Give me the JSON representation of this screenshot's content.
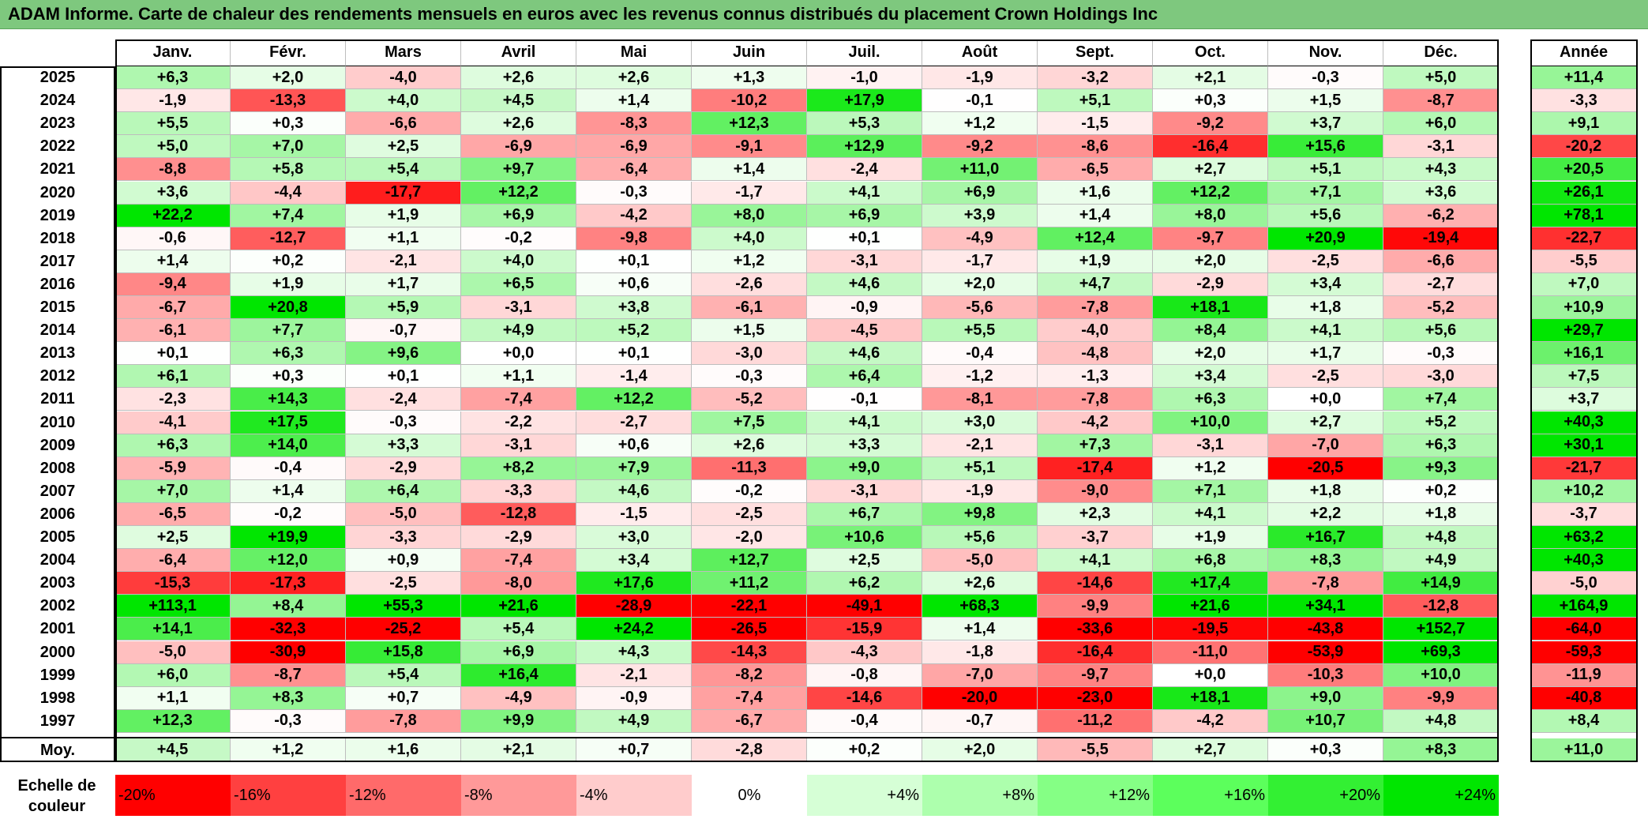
{
  "title": "ADAM Informe. Carte de chaleur des rendements mensuels en euros avec les revenus connus distribués du placement Crown Holdings Inc",
  "colors": {
    "title_bar": "#7ec87e",
    "negative_max": "#ff0000",
    "neutral": "#ffffff",
    "positive_max": "#00e600"
  },
  "chart_data": {
    "type": "heatmap",
    "months": [
      "Janv.",
      "Févr.",
      "Mars",
      "Avril",
      "Mai",
      "Juin",
      "Juil.",
      "Août",
      "Sept.",
      "Oct.",
      "Nov.",
      "Déc."
    ],
    "year_header": "Année",
    "rows": [
      {
        "year": "2025",
        "values": [
          "+6,3",
          "+2,0",
          "-4,0",
          "+2,6",
          "+2,6",
          "+1,3",
          "-1,0",
          "-1,9",
          "-3,2",
          "+2,1",
          "-0,3",
          "+5,0"
        ],
        "annual": "+11,4"
      },
      {
        "year": "2024",
        "values": [
          "-1,9",
          "-13,3",
          "+4,0",
          "+4,5",
          "+1,4",
          "-10,2",
          "+17,9",
          "-0,1",
          "+5,1",
          "+0,3",
          "+1,5",
          "-8,7"
        ],
        "annual": "-3,3"
      },
      {
        "year": "2023",
        "values": [
          "+5,5",
          "+0,3",
          "-6,6",
          "+2,6",
          "-8,3",
          "+12,3",
          "+5,3",
          "+1,2",
          "-1,5",
          "-9,2",
          "+3,7",
          "+6,0"
        ],
        "annual": "+9,1"
      },
      {
        "year": "2022",
        "values": [
          "+5,0",
          "+7,0",
          "+2,5",
          "-6,9",
          "-6,9",
          "-9,1",
          "+12,9",
          "-9,2",
          "-8,6",
          "-16,4",
          "+15,6",
          "-3,1"
        ],
        "annual": "-20,2"
      },
      {
        "year": "2021",
        "values": [
          "-8,8",
          "+5,8",
          "+5,4",
          "+9,7",
          "-6,4",
          "+1,4",
          "-2,4",
          "+11,0",
          "-6,5",
          "+2,7",
          "+5,1",
          "+4,3"
        ],
        "annual": "+20,5"
      },
      {
        "year": "2020",
        "values": [
          "+3,6",
          "-4,4",
          "-17,7",
          "+12,2",
          "-0,3",
          "-1,7",
          "+4,1",
          "+6,9",
          "+1,6",
          "+12,2",
          "+7,1",
          "+3,6"
        ],
        "annual": "+26,1"
      },
      {
        "year": "2019",
        "values": [
          "+22,2",
          "+7,4",
          "+1,9",
          "+6,9",
          "-4,2",
          "+8,0",
          "+6,9",
          "+3,9",
          "+1,4",
          "+8,0",
          "+5,6",
          "-6,2"
        ],
        "annual": "+78,1"
      },
      {
        "year": "2018",
        "values": [
          "-0,6",
          "-12,7",
          "+1,1",
          "-0,2",
          "-9,8",
          "+4,0",
          "+0,1",
          "-4,9",
          "+12,4",
          "-9,7",
          "+20,9",
          "-19,4"
        ],
        "annual": "-22,7"
      },
      {
        "year": "2017",
        "values": [
          "+1,4",
          "+0,2",
          "-2,1",
          "+4,0",
          "+0,1",
          "+1,2",
          "-3,1",
          "-1,7",
          "+1,9",
          "+2,0",
          "-2,5",
          "-6,6"
        ],
        "annual": "-5,5"
      },
      {
        "year": "2016",
        "values": [
          "-9,4",
          "+1,9",
          "+1,7",
          "+6,5",
          "+0,6",
          "-2,6",
          "+4,6",
          "+2,0",
          "+4,7",
          "-2,9",
          "+3,4",
          "-2,7"
        ],
        "annual": "+7,0"
      },
      {
        "year": "2015",
        "values": [
          "-6,7",
          "+20,8",
          "+5,9",
          "-3,1",
          "+3,8",
          "-6,1",
          "-0,9",
          "-5,6",
          "-7,8",
          "+18,1",
          "+1,8",
          "-5,2"
        ],
        "annual": "+10,9"
      },
      {
        "year": "2014",
        "values": [
          "-6,1",
          "+7,7",
          "-0,7",
          "+4,9",
          "+5,2",
          "+1,5",
          "-4,5",
          "+5,5",
          "-4,0",
          "+8,4",
          "+4,1",
          "+5,6"
        ],
        "annual": "+29,7"
      },
      {
        "year": "2013",
        "values": [
          "+0,1",
          "+6,3",
          "+9,6",
          "+0,0",
          "+0,1",
          "-3,0",
          "+4,6",
          "-0,4",
          "-4,8",
          "+2,0",
          "+1,7",
          "-0,3"
        ],
        "annual": "+16,1"
      },
      {
        "year": "2012",
        "values": [
          "+6,1",
          "+0,3",
          "+0,1",
          "+1,1",
          "-1,4",
          "-0,3",
          "+6,4",
          "-1,2",
          "-1,3",
          "+3,4",
          "-2,5",
          "-3,0"
        ],
        "annual": "+7,5"
      },
      {
        "year": "2011",
        "values": [
          "-2,3",
          "+14,3",
          "-2,4",
          "-7,4",
          "+12,2",
          "-5,2",
          "-0,1",
          "-8,1",
          "-7,8",
          "+6,3",
          "+0,0",
          "+7,4"
        ],
        "annual": "+3,7"
      },
      {
        "year": "2010",
        "values": [
          "-4,1",
          "+17,5",
          "-0,3",
          "-2,2",
          "-2,7",
          "+7,5",
          "+4,1",
          "+3,0",
          "-4,2",
          "+10,0",
          "+2,7",
          "+5,2"
        ],
        "annual": "+40,3"
      },
      {
        "year": "2009",
        "values": [
          "+6,3",
          "+14,0",
          "+3,3",
          "-3,1",
          "+0,6",
          "+2,6",
          "+3,3",
          "-2,1",
          "+7,3",
          "-3,1",
          "-7,0",
          "+6,3"
        ],
        "annual": "+30,1"
      },
      {
        "year": "2008",
        "values": [
          "-5,9",
          "-0,4",
          "-2,9",
          "+8,2",
          "+7,9",
          "-11,3",
          "+9,0",
          "+5,1",
          "-17,4",
          "+1,2",
          "-20,5",
          "+9,3"
        ],
        "annual": "-21,7"
      },
      {
        "year": "2007",
        "values": [
          "+7,0",
          "+1,4",
          "+6,4",
          "-3,3",
          "+4,6",
          "-0,2",
          "-3,1",
          "-1,9",
          "-9,0",
          "+7,1",
          "+1,8",
          "+0,2"
        ],
        "annual": "+10,2"
      },
      {
        "year": "2006",
        "values": [
          "-6,5",
          "-0,2",
          "-5,0",
          "-12,8",
          "-1,5",
          "-2,5",
          "+6,7",
          "+9,8",
          "+2,3",
          "+4,1",
          "+2,2",
          "+1,8"
        ],
        "annual": "-3,7"
      },
      {
        "year": "2005",
        "values": [
          "+2,5",
          "+19,9",
          "-3,3",
          "-2,9",
          "+3,0",
          "-2,0",
          "+10,6",
          "+5,6",
          "-3,7",
          "+1,9",
          "+16,7",
          "+4,8"
        ],
        "annual": "+63,2"
      },
      {
        "year": "2004",
        "values": [
          "-6,4",
          "+12,0",
          "+0,9",
          "-7,4",
          "+3,4",
          "+12,7",
          "+2,5",
          "-5,0",
          "+4,1",
          "+6,8",
          "+8,3",
          "+4,9"
        ],
        "annual": "+40,3"
      },
      {
        "year": "2003",
        "values": [
          "-15,3",
          "-17,3",
          "-2,5",
          "-8,0",
          "+17,6",
          "+11,2",
          "+6,2",
          "+2,6",
          "-14,6",
          "+17,4",
          "-7,8",
          "+14,9"
        ],
        "annual": "-5,0"
      },
      {
        "year": "2002",
        "values": [
          "+113,1",
          "+8,4",
          "+55,3",
          "+21,6",
          "-28,9",
          "-22,1",
          "-49,1",
          "+68,3",
          "-9,9",
          "+21,6",
          "+34,1",
          "-12,8"
        ],
        "annual": "+164,9"
      },
      {
        "year": "2001",
        "values": [
          "+14,1",
          "-32,3",
          "-25,2",
          "+5,4",
          "+24,2",
          "-26,5",
          "-15,9",
          "+1,4",
          "-33,6",
          "-19,5",
          "-43,8",
          "+152,7"
        ],
        "annual": "-64,0"
      },
      {
        "year": "2000",
        "values": [
          "-5,0",
          "-30,9",
          "+15,8",
          "+6,9",
          "+4,3",
          "-14,3",
          "-4,3",
          "-1,8",
          "-16,4",
          "-11,0",
          "-53,9",
          "+69,3"
        ],
        "annual": "-59,3"
      },
      {
        "year": "1999",
        "values": [
          "+6,0",
          "-8,7",
          "+5,4",
          "+16,4",
          "-2,1",
          "-8,2",
          "-0,8",
          "-7,0",
          "-9,7",
          "+0,0",
          "-10,3",
          "+10,0"
        ],
        "annual": "-11,9"
      },
      {
        "year": "1998",
        "values": [
          "+1,1",
          "+8,3",
          "+0,7",
          "-4,9",
          "-0,9",
          "-7,4",
          "-14,6",
          "-20,0",
          "-23,0",
          "+18,1",
          "+9,0",
          "-9,9"
        ],
        "annual": "-40,8"
      },
      {
        "year": "1997",
        "values": [
          "+12,3",
          "-0,3",
          "-7,8",
          "+9,9",
          "+4,9",
          "-6,7",
          "-0,4",
          "-0,7",
          "-11,2",
          "-4,2",
          "+10,7",
          "+4,8"
        ],
        "annual": "+8,4"
      }
    ],
    "average": {
      "label": "Moy.",
      "values": [
        "+4,5",
        "+1,2",
        "+1,6",
        "+2,1",
        "+0,7",
        "-2,8",
        "+0,2",
        "+2,0",
        "-5,5",
        "+2,7",
        "+0,3",
        "+8,3"
      ],
      "annual": "+11,0"
    },
    "color_scale": {
      "label": "Echelle de couleur",
      "stops": [
        {
          "label": "-20%",
          "value": -20,
          "color": "#ff0000"
        },
        {
          "label": "-16%",
          "value": -16,
          "color": "#ff4040"
        },
        {
          "label": "-12%",
          "value": -12,
          "color": "#ff6a6a"
        },
        {
          "label": "-8%",
          "value": -8,
          "color": "#ff9999"
        },
        {
          "label": "-4%",
          "value": -4,
          "color": "#ffcccc"
        },
        {
          "label": "0%",
          "value": 0,
          "color": "#ffffff"
        },
        {
          "label": "+4%",
          "value": 4,
          "color": "#d6ffd6"
        },
        {
          "label": "+8%",
          "value": 8,
          "color": "#adffad"
        },
        {
          "label": "+12%",
          "value": 12,
          "color": "#85ff85"
        },
        {
          "label": "+16%",
          "value": 16,
          "color": "#5cff5c"
        },
        {
          "label": "+20%",
          "value": 20,
          "color": "#33f033"
        },
        {
          "label": "+24%",
          "value": 24,
          "color": "#00e600"
        }
      ]
    }
  }
}
